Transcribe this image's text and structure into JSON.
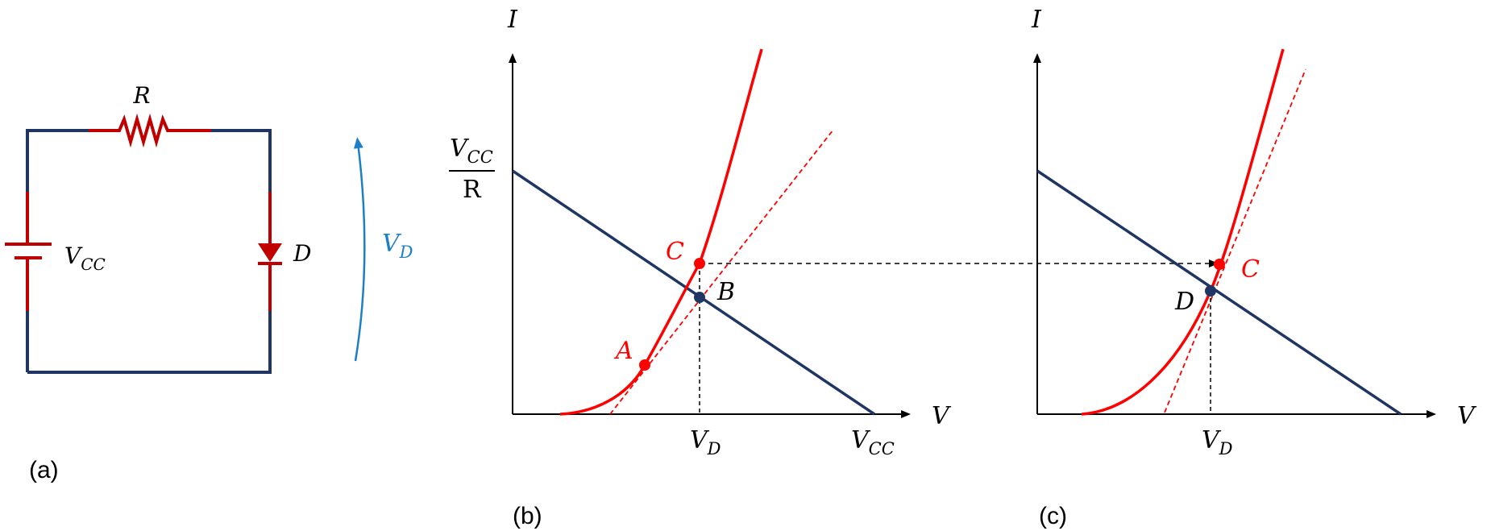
{
  "colors": {
    "wire": "#1F3564",
    "component": "#C00000",
    "curve": "#FF0000",
    "voltage_arrow": "#1F7FC4",
    "axis": "#000000",
    "node_blue": "#1F3564"
  },
  "circuit": {
    "resistor_label": "R",
    "source_label": "V",
    "source_sub": "CC",
    "diode_label": "D",
    "voltage_label": "V",
    "voltage_sub": "D",
    "caption": "(a)"
  },
  "graph_b": {
    "y_axis": "I",
    "x_axis": "V",
    "intercept_num": "V",
    "intercept_num_sub": "CC",
    "intercept_den": "R",
    "vd_label": "V",
    "vd_sub": "D",
    "vcc_label": "V",
    "vcc_sub": "CC",
    "point_a": "A",
    "point_b": "B",
    "point_c": "C",
    "caption": "(b)"
  },
  "graph_c": {
    "y_axis": "I",
    "x_axis": "V",
    "vd_label": "V",
    "vd_sub": "D",
    "point_c": "C",
    "point_d": "D",
    "caption": "(c)"
  }
}
